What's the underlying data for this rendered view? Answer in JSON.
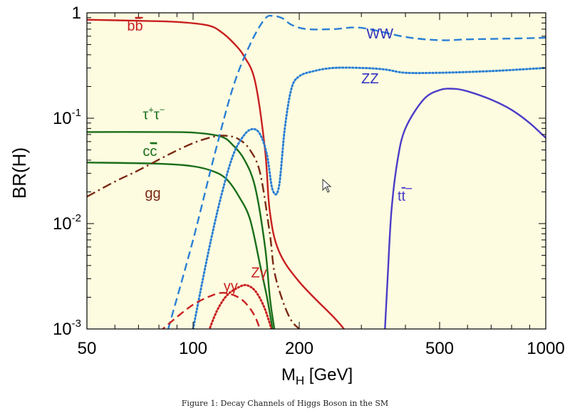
{
  "chart_data": {
    "type": "line",
    "xlabel_main": "M",
    "xlabel_sub": "H",
    "xlabel_rest": " [GeV]",
    "ylabel": "BR(H)",
    "x_scale": "log",
    "y_scale": "log",
    "xlim": [
      50,
      1000
    ],
    "ylim": [
      0.001,
      1
    ],
    "x_ticks": [
      {
        "value": 50,
        "label": "50"
      },
      {
        "value": 100,
        "label": "100"
      },
      {
        "value": 200,
        "label": "200"
      },
      {
        "value": 500,
        "label": "500"
      },
      {
        "value": 1000,
        "label": "1000"
      }
    ],
    "y_ticks": [
      {
        "value": 1,
        "base": "1",
        "exp": ""
      },
      {
        "value": 0.1,
        "base": "10",
        "exp": "-1"
      },
      {
        "value": 0.01,
        "base": "10",
        "exp": "-2"
      },
      {
        "value": 0.001,
        "base": "10",
        "exp": "-3"
      }
    ],
    "background_color": "#fdfce0",
    "grid": false,
    "series": [
      {
        "name": "bb̄",
        "color": "#c82020",
        "style": "solid",
        "points": [
          [
            50,
            0.86
          ],
          [
            70,
            0.84
          ],
          [
            90,
            0.82
          ],
          [
            110,
            0.76
          ],
          [
            120,
            0.66
          ],
          [
            130,
            0.52
          ],
          [
            140,
            0.38
          ],
          [
            150,
            0.22
          ],
          [
            160,
            0.05
          ],
          [
            165,
            0.013
          ],
          [
            175,
            0.0055
          ],
          [
            200,
            0.0028
          ],
          [
            250,
            0.0013
          ],
          [
            268,
            0.001
          ]
        ]
      },
      {
        "name": "τ+τ−",
        "color": "#1a6e1a",
        "style": "solid",
        "points": [
          [
            50,
            0.074
          ],
          [
            80,
            0.074
          ],
          [
            100,
            0.073
          ],
          [
            120,
            0.067
          ],
          [
            130,
            0.055
          ],
          [
            140,
            0.04
          ],
          [
            150,
            0.022
          ],
          [
            160,
            0.006
          ],
          [
            165,
            0.002
          ],
          [
            170,
            0.001
          ]
        ]
      },
      {
        "name": "cc̄",
        "color": "#1a6e1a",
        "style": "solid",
        "points": [
          [
            50,
            0.038
          ],
          [
            80,
            0.037
          ],
          [
            100,
            0.035
          ],
          [
            115,
            0.031
          ],
          [
            125,
            0.026
          ],
          [
            135,
            0.018
          ],
          [
            145,
            0.011
          ],
          [
            155,
            0.004
          ],
          [
            162,
            0.002
          ],
          [
            168,
            0.001
          ]
        ]
      },
      {
        "name": "gg",
        "color": "#7a2a14",
        "style": "dashdot",
        "points": [
          [
            50,
            0.018
          ],
          [
            60,
            0.025
          ],
          [
            70,
            0.032
          ],
          [
            85,
            0.045
          ],
          [
            100,
            0.058
          ],
          [
            115,
            0.067
          ],
          [
            125,
            0.068
          ],
          [
            135,
            0.063
          ],
          [
            145,
            0.05
          ],
          [
            155,
            0.03
          ],
          [
            165,
            0.008
          ],
          [
            170,
            0.0035
          ],
          [
            180,
            0.0018
          ],
          [
            190,
            0.0012
          ],
          [
            200,
            0.001
          ]
        ]
      },
      {
        "name": "WW",
        "color": "#2a7fd4",
        "style": "dashed",
        "points": [
          [
            85,
            0.001
          ],
          [
            100,
            0.007
          ],
          [
            115,
            0.045
          ],
          [
            130,
            0.2
          ],
          [
            145,
            0.5
          ],
          [
            160,
            0.88
          ],
          [
            170,
            0.93
          ],
          [
            180,
            0.88
          ],
          [
            190,
            0.77
          ],
          [
            210,
            0.7
          ],
          [
            250,
            0.7
          ],
          [
            300,
            0.72
          ],
          [
            400,
            0.59
          ],
          [
            500,
            0.55
          ],
          [
            600,
            0.56
          ],
          [
            800,
            0.57
          ],
          [
            1000,
            0.58
          ]
        ]
      },
      {
        "name": "ZZ",
        "color": "#2a7fd4",
        "style": "dotted",
        "points": [
          [
            100,
            0.001
          ],
          [
            110,
            0.005
          ],
          [
            120,
            0.018
          ],
          [
            130,
            0.045
          ],
          [
            140,
            0.07
          ],
          [
            148,
            0.079
          ],
          [
            155,
            0.07
          ],
          [
            162,
            0.045
          ],
          [
            168,
            0.021
          ],
          [
            175,
            0.022
          ],
          [
            182,
            0.08
          ],
          [
            190,
            0.19
          ],
          [
            200,
            0.25
          ],
          [
            220,
            0.28
          ],
          [
            250,
            0.3
          ],
          [
            300,
            0.3
          ],
          [
            350,
            0.29
          ],
          [
            400,
            0.27
          ],
          [
            500,
            0.27
          ],
          [
            700,
            0.28
          ],
          [
            1000,
            0.3
          ]
        ]
      },
      {
        "name": "tt̄",
        "color": "#4b3cc8",
        "style": "solid",
        "points": [
          [
            350,
            0.001
          ],
          [
            356,
            0.003
          ],
          [
            365,
            0.013
          ],
          [
            380,
            0.04
          ],
          [
            400,
            0.08
          ],
          [
            450,
            0.15
          ],
          [
            500,
            0.185
          ],
          [
            550,
            0.19
          ],
          [
            600,
            0.18
          ],
          [
            700,
            0.15
          ],
          [
            800,
            0.12
          ],
          [
            900,
            0.09
          ],
          [
            1000,
            0.065
          ]
        ]
      },
      {
        "name": "γγ",
        "color": "#c82020",
        "style": "dashed",
        "points": [
          [
            80,
            0.00093
          ],
          [
            90,
            0.0013
          ],
          [
            100,
            0.0017
          ],
          [
            110,
            0.002
          ],
          [
            120,
            0.0022
          ],
          [
            130,
            0.0021
          ],
          [
            140,
            0.0018
          ],
          [
            150,
            0.0013
          ],
          [
            158,
            0.0008
          ]
        ]
      },
      {
        "name": "Zγ",
        "color": "#c82020",
        "style": "dotted",
        "points": [
          [
            110,
            0.0009
          ],
          [
            117,
            0.0015
          ],
          [
            125,
            0.0021
          ],
          [
            135,
            0.0025
          ],
          [
            142,
            0.0026
          ],
          [
            150,
            0.0023
          ],
          [
            158,
            0.0017
          ],
          [
            164,
            0.0012
          ],
          [
            168,
            0.0009
          ]
        ]
      }
    ],
    "labels": [
      {
        "text": "b",
        "overbar": "b",
        "series": "bb̄",
        "color": "#c82020",
        "at": [
          65,
          0.68
        ]
      },
      {
        "text": "WW",
        "series": "WW",
        "color": "#3030c0",
        "at": [
          310,
          0.57
        ]
      },
      {
        "text": "ZZ",
        "series": "ZZ",
        "color": "#3030c0",
        "at": [
          300,
          0.215
        ]
      },
      {
        "text": "τ",
        "sup1": "+",
        "text2": "τ",
        "sup2": "−",
        "series": "τ+τ−",
        "color": "#1a6e1a",
        "at": [
          72,
          0.098
        ]
      },
      {
        "text": "c",
        "overbar": "c",
        "series": "cc̄",
        "color": "#1a6e1a",
        "at": [
          72,
          0.044
        ]
      },
      {
        "text": "gg",
        "series": "gg",
        "color": "#7a2a14",
        "at": [
          73,
          0.0175
        ]
      },
      {
        "text": "t",
        "overbar": "t",
        "series": "tt̄",
        "color": "#4b3cc8",
        "at": [
          380,
          0.0165
        ]
      },
      {
        "text": "γγ",
        "series": "γγ",
        "color": "#c82020",
        "at": [
          122,
          0.0023
        ]
      },
      {
        "text": "Zγ",
        "series": "Zγ",
        "color": "#c82020",
        "at": [
          146,
          0.0031
        ]
      }
    ]
  },
  "caption": "Figure 1: Decay Channels of Higgs Boson in the SM"
}
